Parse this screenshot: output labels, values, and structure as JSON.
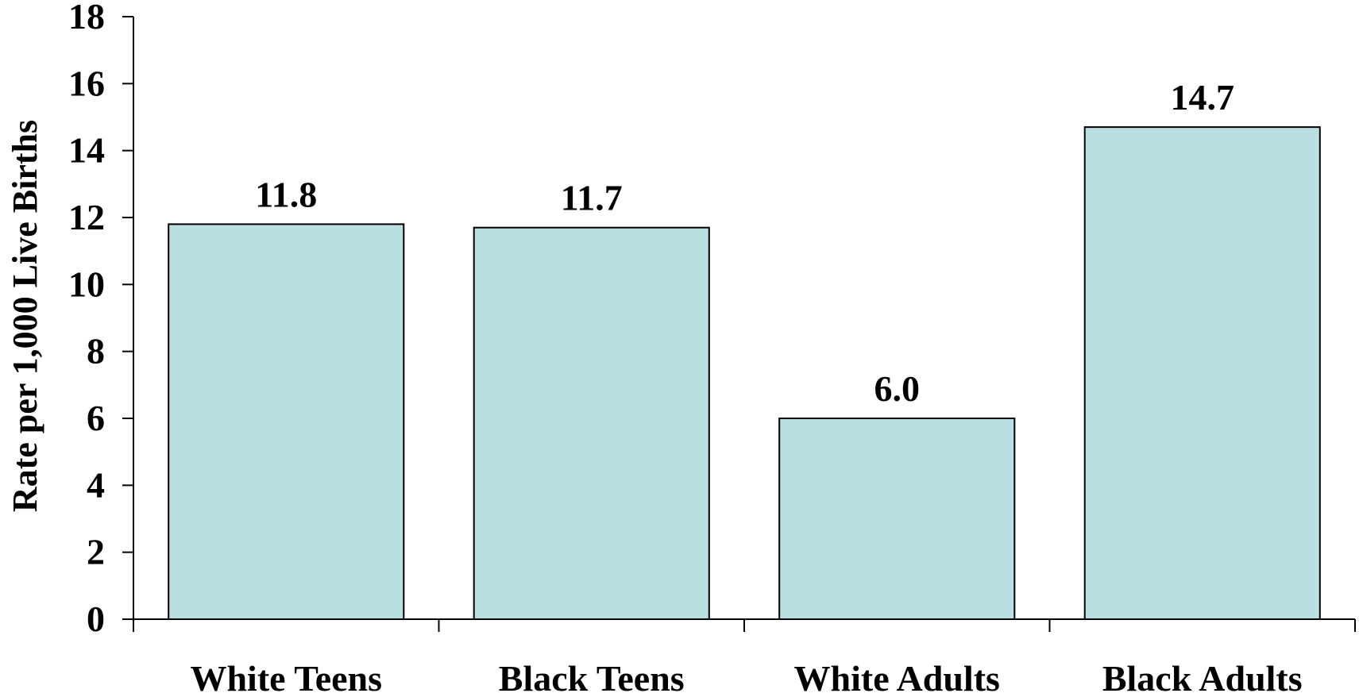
{
  "chart_data": {
    "type": "bar",
    "categories": [
      "White Teens",
      "Black Teens",
      "White Adults",
      "Black Adults"
    ],
    "values": [
      11.8,
      11.7,
      6.0,
      14.7
    ],
    "data_labels": [
      "11.8",
      "11.7",
      "6.0",
      "14.7"
    ],
    "title": "",
    "xlabel": "",
    "ylabel": "Rate per 1,000 Live Births",
    "ylim": [
      0,
      18
    ],
    "yticks": [
      0,
      2,
      4,
      6,
      8,
      10,
      12,
      14,
      16,
      18
    ],
    "ytick_labels": [
      "0",
      "2",
      "4",
      "6",
      "8",
      "10",
      "12",
      "14",
      "16",
      "18"
    ],
    "grid": false,
    "legend": "none",
    "bar_color": "#b9dfe2",
    "bar_edge_color": "#000000"
  }
}
